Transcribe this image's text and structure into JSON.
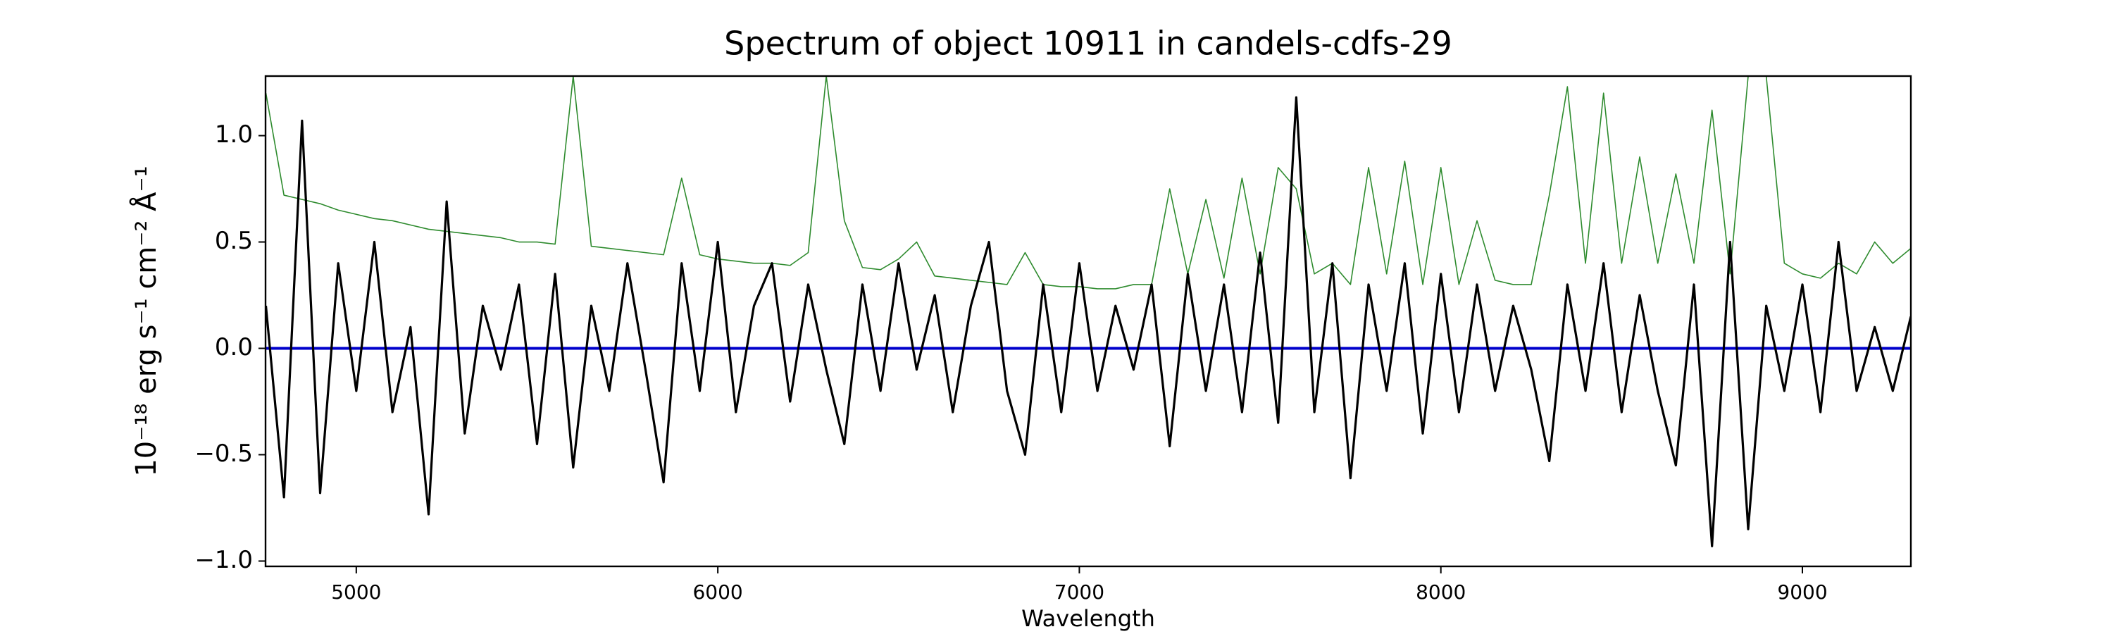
{
  "chart_data": {
    "type": "line",
    "title": "Spectrum of object 10911 in candels-cdfs-29",
    "xlabel": "Wavelength",
    "ylabel": "10⁻¹⁸ erg s⁻¹ cm⁻² Å⁻¹",
    "x": [
      4750,
      4800,
      4850,
      4900,
      4950,
      5000,
      5050,
      5100,
      5150,
      5200,
      5250,
      5300,
      5350,
      5400,
      5450,
      5500,
      5550,
      5600,
      5650,
      5700,
      5750,
      5800,
      5850,
      5900,
      5950,
      6000,
      6050,
      6100,
      6150,
      6200,
      6250,
      6300,
      6350,
      6400,
      6450,
      6500,
      6550,
      6600,
      6650,
      6700,
      6750,
      6800,
      6850,
      6900,
      6950,
      7000,
      7050,
      7100,
      7150,
      7200,
      7250,
      7300,
      7350,
      7400,
      7450,
      7500,
      7550,
      7600,
      7650,
      7700,
      7750,
      7800,
      7850,
      7900,
      7950,
      8000,
      8050,
      8100,
      8150,
      8200,
      8250,
      8300,
      8350,
      8400,
      8450,
      8500,
      8550,
      8600,
      8650,
      8700,
      8750,
      8800,
      8850,
      8900,
      8950,
      9000,
      9050,
      9100,
      9150,
      9200,
      9250,
      9300
    ],
    "series": [
      {
        "color": "#2e8b2e",
        "width": 1.6,
        "values": [
          1.2,
          0.72,
          0.7,
          0.68,
          0.65,
          0.63,
          0.61,
          0.6,
          0.58,
          0.56,
          0.55,
          0.54,
          0.53,
          0.52,
          0.5,
          0.5,
          0.49,
          1.28,
          0.48,
          0.47,
          0.46,
          0.45,
          0.44,
          0.8,
          0.44,
          0.42,
          0.41,
          0.4,
          0.4,
          0.39,
          0.45,
          1.28,
          0.6,
          0.38,
          0.37,
          0.42,
          0.5,
          0.34,
          0.33,
          0.32,
          0.31,
          0.3,
          0.45,
          0.3,
          0.29,
          0.29,
          0.28,
          0.28,
          0.3,
          0.3,
          0.75,
          0.35,
          0.7,
          0.33,
          0.8,
          0.35,
          0.85,
          0.75,
          0.35,
          0.4,
          0.3,
          0.85,
          0.35,
          0.88,
          0.3,
          0.85,
          0.3,
          0.6,
          0.32,
          0.3,
          0.3,
          0.72,
          1.23,
          0.4,
          1.2,
          0.4,
          0.9,
          0.4,
          0.82,
          0.4,
          1.12,
          0.35,
          1.28,
          1.28,
          0.4,
          0.35,
          0.33,
          0.4,
          0.35,
          0.5,
          0.4,
          0.47
        ]
      },
      {
        "color": "#0000cc",
        "width": 4,
        "values": [
          0,
          0,
          0,
          0,
          0,
          0,
          0,
          0,
          0,
          0,
          0,
          0,
          0,
          0,
          0,
          0,
          0,
          0,
          0,
          0,
          0,
          0,
          0,
          0,
          0,
          0,
          0,
          0,
          0,
          0,
          0,
          0,
          0,
          0,
          0,
          0,
          0,
          0,
          0,
          0,
          0,
          0,
          0,
          0,
          0,
          0,
          0,
          0,
          0,
          0,
          0,
          0,
          0,
          0,
          0,
          0,
          0,
          0,
          0,
          0,
          0,
          0,
          0,
          0,
          0,
          0,
          0,
          0,
          0,
          0,
          0,
          0,
          0,
          0,
          0,
          0,
          0,
          0,
          0,
          0,
          0,
          0,
          0,
          0,
          0,
          0,
          0,
          0,
          0,
          0,
          0,
          0
        ]
      },
      {
        "color": "#000000",
        "width": 3.2,
        "values": [
          0.2,
          -0.7,
          1.07,
          -0.68,
          0.4,
          -0.2,
          0.5,
          -0.3,
          0.1,
          -0.78,
          0.69,
          -0.4,
          0.2,
          -0.1,
          0.3,
          -0.45,
          0.35,
          -0.56,
          0.2,
          -0.2,
          0.4,
          -0.1,
          -0.63,
          0.4,
          -0.2,
          0.5,
          -0.3,
          0.2,
          0.4,
          -0.25,
          0.3,
          -0.1,
          -0.45,
          0.3,
          -0.2,
          0.4,
          -0.1,
          0.25,
          -0.3,
          0.2,
          0.5,
          -0.2,
          -0.5,
          0.3,
          -0.3,
          0.4,
          -0.2,
          0.2,
          -0.1,
          0.3,
          -0.46,
          0.35,
          -0.2,
          0.3,
          -0.3,
          0.45,
          -0.35,
          1.18,
          -0.3,
          0.4,
          -0.61,
          0.3,
          -0.2,
          0.4,
          -0.4,
          0.35,
          -0.3,
          0.3,
          -0.2,
          0.2,
          -0.1,
          -0.53,
          0.3,
          -0.2,
          0.4,
          -0.3,
          0.25,
          -0.2,
          -0.55,
          0.3,
          -0.93,
          0.5,
          -0.85,
          0.2,
          -0.2,
          0.3,
          -0.3,
          0.5,
          -0.2,
          0.1,
          -0.2,
          0.15
        ]
      }
    ],
    "xlim": [
      4749,
      9300
    ],
    "ylim": [
      -1.025,
      1.28
    ],
    "xticks": [
      5000,
      6000,
      7000,
      8000,
      9000
    ],
    "yticks": [
      {
        "value": -1,
        "label": "−1.0"
      },
      {
        "value": -0.5,
        "label": "−0.5"
      },
      {
        "value": 0,
        "label": "0.0"
      },
      {
        "value": 0.5,
        "label": "0.5"
      },
      {
        "value": 1,
        "label": "1.0"
      }
    ],
    "grid": false
  }
}
